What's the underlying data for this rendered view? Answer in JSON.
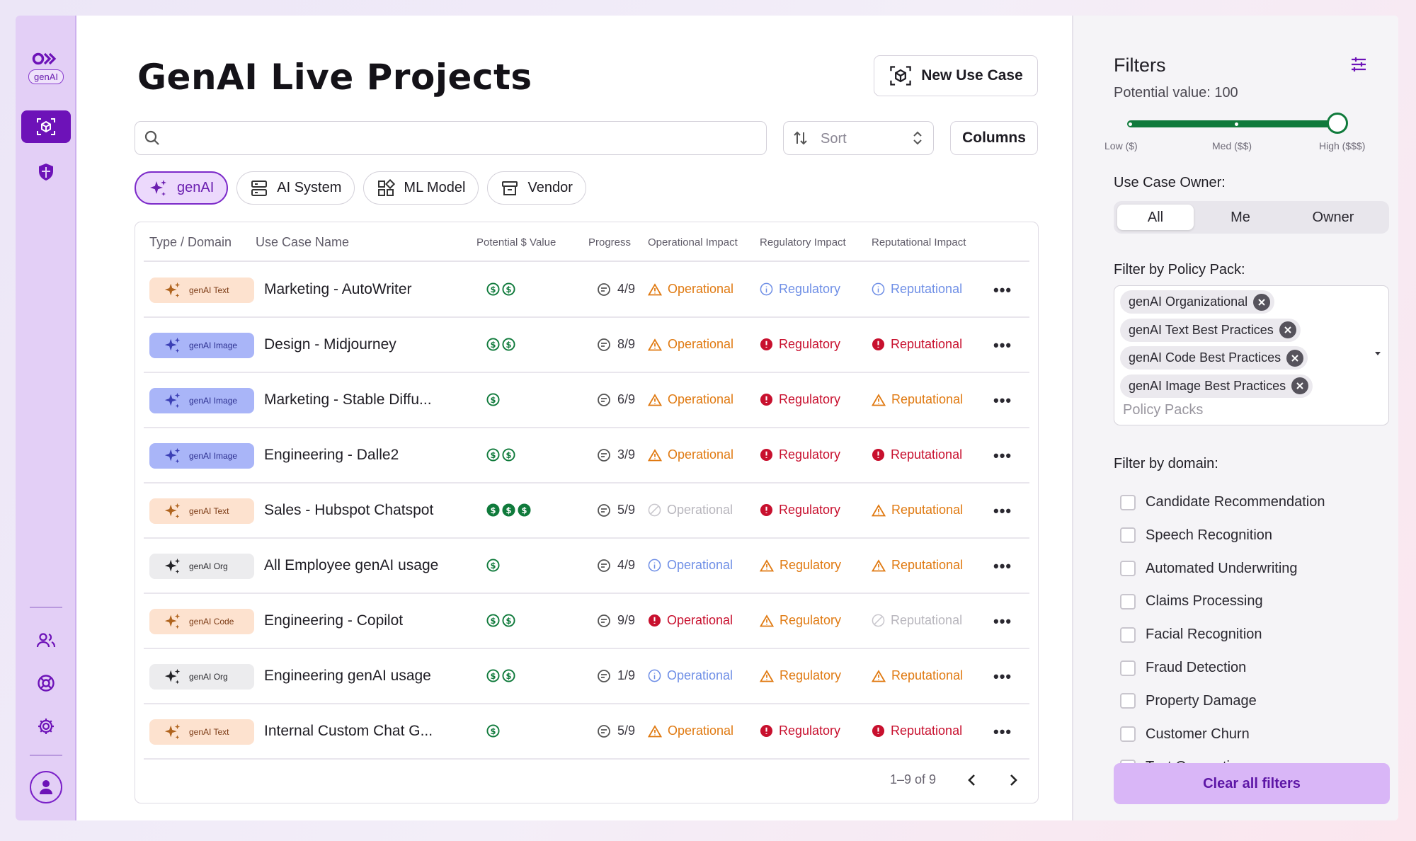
{
  "rail": {
    "logo_pill": "genAI"
  },
  "header": {
    "title": "GenAI Live Projects",
    "new_use_case": "New Use Case"
  },
  "toolbar": {
    "search_placeholder": "",
    "sort_label": "Sort",
    "columns_label": "Columns"
  },
  "chips": [
    {
      "label": "genAI",
      "icon": "sparkle-icon",
      "active": true
    },
    {
      "label": "AI System",
      "icon": "server-icon",
      "active": false
    },
    {
      "label": "ML Model",
      "icon": "grid-icon",
      "active": false
    },
    {
      "label": "Vendor",
      "icon": "archive-icon",
      "active": false
    }
  ],
  "table": {
    "headers": {
      "type_domain": "Type / Domain",
      "use_case_name": "Use Case Name",
      "potential_value": "Potential $ Value",
      "progress": "Progress",
      "operational": "Operational Impact",
      "regulatory": "Regulatory Impact",
      "reputational": "Reputational Impact"
    },
    "rows": [
      {
        "badge": "genAI Text",
        "kind": "text",
        "name": "Marketing - AutoWriter",
        "dollars": 2,
        "progress": "4/9",
        "op": [
          "Operational",
          "warn"
        ],
        "reg": [
          "Regulatory",
          "info"
        ],
        "rep": [
          "Reputational",
          "info"
        ]
      },
      {
        "badge": "genAI Image",
        "kind": "image",
        "name": "Design - Midjourney",
        "dollars": 2,
        "progress": "8/9",
        "op": [
          "Operational",
          "warn"
        ],
        "reg": [
          "Regulatory",
          "err"
        ],
        "rep": [
          "Reputational",
          "err"
        ]
      },
      {
        "badge": "genAI Image",
        "kind": "image",
        "name": "Marketing - Stable Diffu...",
        "dollars": 1,
        "progress": "6/9",
        "op": [
          "Operational",
          "warn"
        ],
        "reg": [
          "Regulatory",
          "err"
        ],
        "rep": [
          "Reputational",
          "warn"
        ]
      },
      {
        "badge": "genAI Image",
        "kind": "image",
        "name": "Engineering - Dalle2",
        "dollars": 2,
        "progress": "3/9",
        "op": [
          "Operational",
          "warn"
        ],
        "reg": [
          "Regulatory",
          "err"
        ],
        "rep": [
          "Reputational",
          "err"
        ]
      },
      {
        "badge": "genAI Text",
        "kind": "text",
        "name": "Sales - Hubspot Chatspot",
        "dollars": 3,
        "progress": "5/9",
        "op": [
          "Operational",
          "none"
        ],
        "reg": [
          "Regulatory",
          "err"
        ],
        "rep": [
          "Reputational",
          "warn"
        ]
      },
      {
        "badge": "genAI Org",
        "kind": "org",
        "name": "All Employee genAI usage",
        "dollars": 1,
        "progress": "4/9",
        "op": [
          "Operational",
          "info"
        ],
        "reg": [
          "Regulatory",
          "warn"
        ],
        "rep": [
          "Reputational",
          "warn"
        ]
      },
      {
        "badge": "genAI Code",
        "kind": "code",
        "name": "Engineering - Copilot",
        "dollars": 2,
        "progress": "9/9",
        "op": [
          "Operational",
          "err"
        ],
        "reg": [
          "Regulatory",
          "warn"
        ],
        "rep": [
          "Reputational",
          "none"
        ]
      },
      {
        "badge": "genAI Org",
        "kind": "org",
        "name": "Engineering genAI usage",
        "dollars": 2,
        "progress": "1/9",
        "op": [
          "Operational",
          "info"
        ],
        "reg": [
          "Regulatory",
          "warn"
        ],
        "rep": [
          "Reputational",
          "warn"
        ]
      },
      {
        "badge": "genAI Text",
        "kind": "text",
        "name": "Internal Custom Chat G...",
        "dollars": 1,
        "progress": "5/9",
        "op": [
          "Operational",
          "warn"
        ],
        "reg": [
          "Regulatory",
          "err"
        ],
        "rep": [
          "Reputational",
          "err"
        ]
      }
    ],
    "pagination": "1–9 of 9"
  },
  "filters": {
    "title": "Filters",
    "potential_value": "Potential value: 100",
    "potential_value_level": 1.0,
    "slider_labels": {
      "low": "Low ($)",
      "med": "Med ($$)",
      "high": "High ($$$)"
    },
    "owner_label": "Use Case Owner:",
    "owner_options": [
      "All",
      "Me",
      "Owner"
    ],
    "owner_selected": "All",
    "policy_label": "Filter by Policy Pack:",
    "policy_tags": [
      "genAI Organizational",
      "genAI Text Best Practices",
      "genAI Code Best Practices",
      "genAI Image Best Practices"
    ],
    "policy_placeholder": "Policy Packs",
    "domain_label": "Filter by domain:",
    "domains": [
      "Candidate Recommendation",
      "Speech Recognition",
      "Automated Underwriting",
      "Claims Processing",
      "Facial Recognition",
      "Fraud Detection",
      "Property Damage",
      "Customer Churn",
      "Text Generation"
    ],
    "clear_label": "Clear all filters"
  },
  "colors": {
    "brand": "#6d12b8",
    "success": "#0f7a3b",
    "warn": "#e07a12",
    "error": "#c8102e",
    "info": "#6f8fe6"
  }
}
